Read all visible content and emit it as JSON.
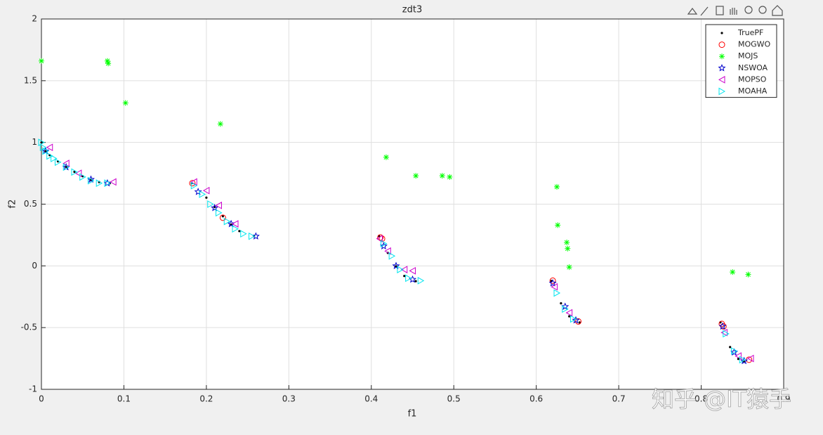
{
  "chart_data": {
    "type": "scatter",
    "title": "zdt3",
    "xlabel": "f1",
    "ylabel": "f2",
    "xlim": [
      0,
      0.9
    ],
    "ylim": [
      -1,
      2
    ],
    "xticks": [
      0,
      0.1,
      0.2,
      0.3,
      0.4,
      0.5,
      0.6,
      0.7,
      0.8,
      0.9
    ],
    "yticks": [
      -1,
      -0.5,
      0,
      0.5,
      1,
      1.5,
      2
    ],
    "grid": true,
    "legend": "upper right",
    "series": [
      {
        "name": "TruePF",
        "color": "#000000",
        "marker": "dot",
        "x": [
          0,
          0.005,
          0.01,
          0.02,
          0.03,
          0.04,
          0.05,
          0.06,
          0.07,
          0.083,
          0.1822,
          0.2,
          0.21,
          0.22,
          0.23,
          0.24,
          0.2578,
          0.4093,
          0.42,
          0.43,
          0.44,
          0.4539,
          0.6183,
          0.63,
          0.64,
          0.6525,
          0.8233,
          0.835,
          0.845,
          0.8518
        ],
        "y": [
          1,
          0.9285,
          0.8969,
          0.8468,
          0.8025,
          0.762,
          0.7264,
          0.698,
          0.6788,
          0.6697,
          0.6699,
          0.5528,
          0.4768,
          0.4017,
          0.3343,
          0.2818,
          0.2422,
          0.2423,
          0.105,
          -0.0036,
          -0.0818,
          -0.1242,
          -0.1225,
          -0.3034,
          -0.4087,
          -0.4583,
          -0.4578,
          -0.6578,
          -0.7538,
          -0.7733
        ]
      },
      {
        "name": "MOGWO",
        "color": "#ff0000",
        "marker": "circle",
        "x": [
          0.183,
          0.22,
          0.411,
          0.413,
          0.62,
          0.651,
          0.825,
          0.827,
          0.858
        ],
        "y": [
          0.67,
          0.39,
          0.23,
          0.22,
          -0.12,
          -0.45,
          -0.47,
          -0.49,
          -0.76
        ]
      },
      {
        "name": "MOJS",
        "color": "#00ff00",
        "marker": "asterisk",
        "x": [
          0,
          0.08,
          0.081,
          0.102,
          0.217,
          0.418,
          0.454,
          0.486,
          0.495,
          0.625,
          0.626,
          0.637,
          0.638,
          0.64,
          0.838,
          0.857
        ],
        "y": [
          1.66,
          1.66,
          1.64,
          1.32,
          1.15,
          0.88,
          0.73,
          0.73,
          0.72,
          0.64,
          0.33,
          0.19,
          0.14,
          -0.01,
          -0.05,
          -0.07
        ]
      },
      {
        "name": "NSWOA",
        "color": "#0000cc",
        "marker": "pentagram",
        "x": [
          0.005,
          0.03,
          0.06,
          0.08,
          0.19,
          0.21,
          0.23,
          0.26,
          0.415,
          0.43,
          0.45,
          0.62,
          0.635,
          0.648,
          0.826,
          0.84,
          0.852
        ],
        "y": [
          0.93,
          0.8,
          0.7,
          0.67,
          0.6,
          0.47,
          0.34,
          0.24,
          0.16,
          0,
          -0.11,
          -0.14,
          -0.33,
          -0.44,
          -0.49,
          -0.7,
          -0.77
        ]
      },
      {
        "name": "MOPSO",
        "color": "#cc00cc",
        "marker": "triangle-left",
        "x": [
          0.01,
          0.03,
          0.045,
          0.087,
          0.185,
          0.2,
          0.215,
          0.235,
          0.41,
          0.42,
          0.44,
          0.45,
          0.622,
          0.64,
          0.828,
          0.845,
          0.86
        ],
        "y": [
          0.96,
          0.83,
          0.75,
          0.68,
          0.68,
          0.61,
          0.49,
          0.34,
          0.22,
          0.12,
          -0.03,
          -0.04,
          -0.17,
          -0.38,
          -0.54,
          -0.73,
          -0.75
        ]
      },
      {
        "name": "MOAHA",
        "color": "#00e5ee",
        "marker": "triangle-right",
        "x": [
          0,
          0.002,
          0.005,
          0.01,
          0.015,
          0.02,
          0.03,
          0.04,
          0.05,
          0.06,
          0.07,
          0.08,
          0.185,
          0.195,
          0.205,
          0.215,
          0.225,
          0.235,
          0.245,
          0.255,
          0.415,
          0.425,
          0.435,
          0.445,
          0.46,
          0.625,
          0.635,
          0.645,
          0.83,
          0.84,
          0.85
        ],
        "y": [
          1,
          0.96,
          0.93,
          0.89,
          0.87,
          0.84,
          0.8,
          0.76,
          0.72,
          0.69,
          0.67,
          0.67,
          0.65,
          0.58,
          0.5,
          0.43,
          0.36,
          0.3,
          0.26,
          0.24,
          0.18,
          0.08,
          -0.03,
          -0.1,
          -0.12,
          -0.22,
          -0.35,
          -0.43,
          -0.55,
          -0.69,
          -0.76
        ]
      }
    ]
  },
  "watermark": "知乎 @IT猿手"
}
